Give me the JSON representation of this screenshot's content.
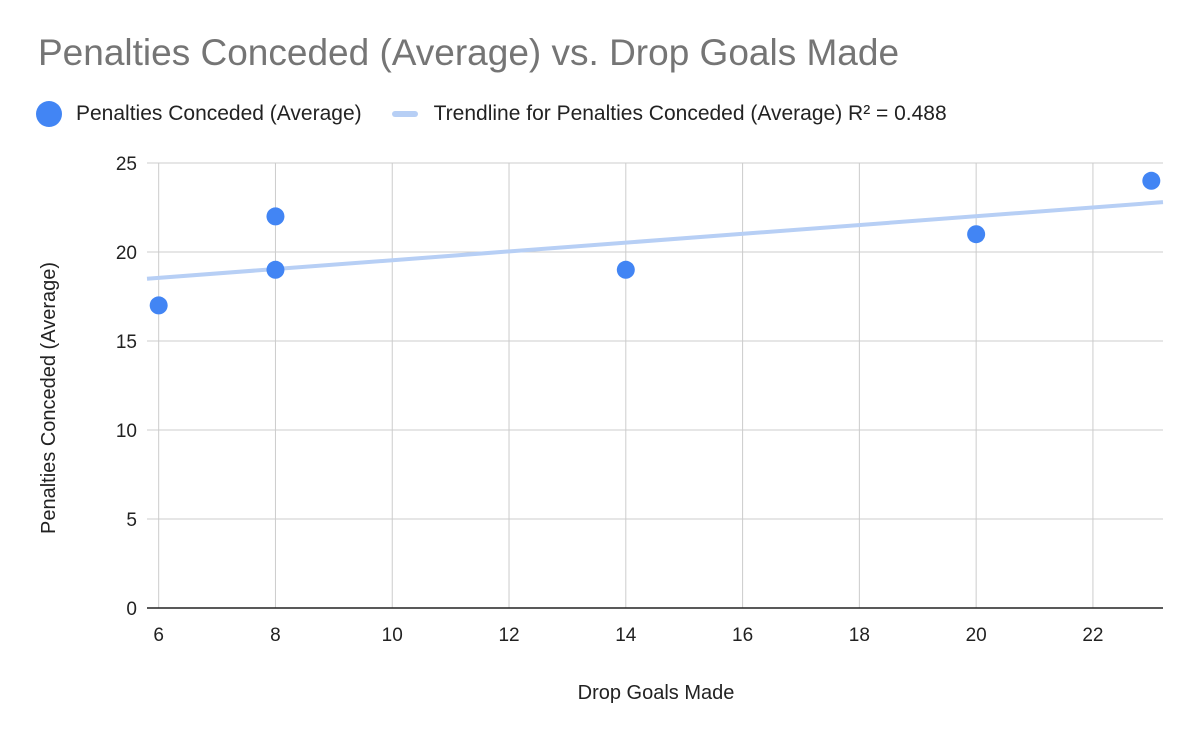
{
  "chart_data": {
    "type": "scatter",
    "title": "Penalties Conceded (Average) vs. Drop Goals Made",
    "xlabel": "Drop Goals Made",
    "ylabel": "Penalties Conceded (Average)",
    "xlim": [
      5.8,
      23.2
    ],
    "ylim": [
      0,
      25
    ],
    "x_ticks": [
      "6",
      "8",
      "10",
      "12",
      "14",
      "16",
      "18",
      "20",
      "22"
    ],
    "y_ticks": [
      "0",
      "5",
      "10",
      "15",
      "20",
      "25"
    ],
    "grid": true,
    "legend_position": "top",
    "series": [
      {
        "name": "Penalties Conceded (Average)",
        "color": "#4285F4",
        "points": [
          {
            "x": 6,
            "y": 17
          },
          {
            "x": 8,
            "y": 22
          },
          {
            "x": 8,
            "y": 19
          },
          {
            "x": 14,
            "y": 19
          },
          {
            "x": 20,
            "y": 21
          },
          {
            "x": 23,
            "y": 24
          }
        ]
      }
    ],
    "trendline": {
      "label": "Trendline for Penalties Conceded (Average) R² = 0.488",
      "color": "#B7CFF5",
      "y_at_xmin": 18.5,
      "y_at_xmax": 22.8
    }
  }
}
